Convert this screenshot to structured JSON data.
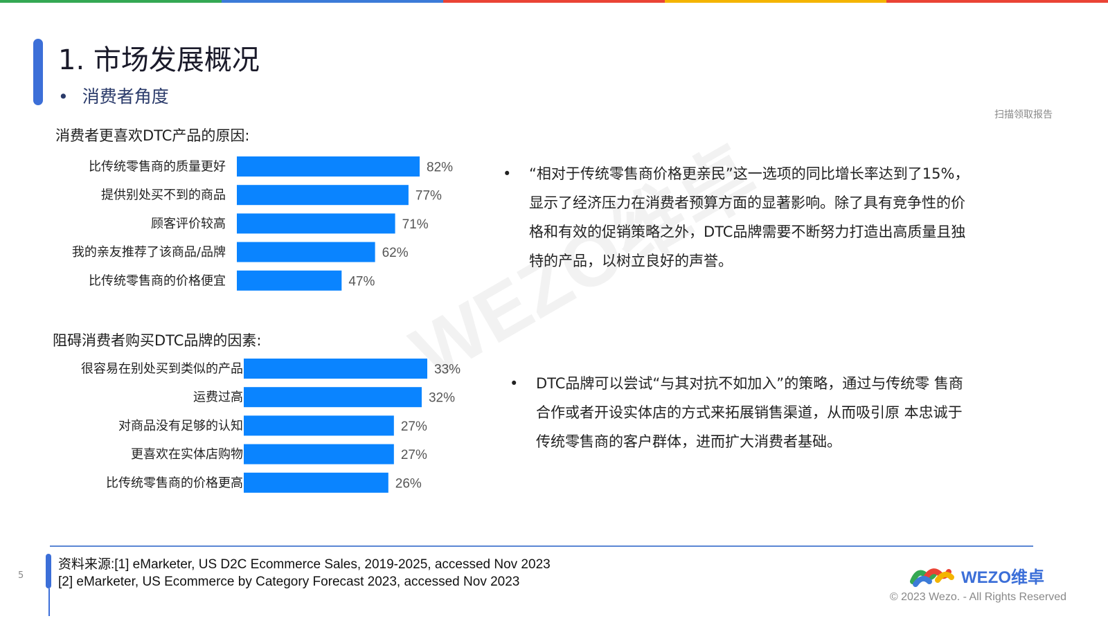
{
  "header": {
    "stripe_colors": [
      "#34a853",
      "#3c7bd8",
      "#ea4335",
      "#f4b400",
      "#ea4335"
    ],
    "title": "1. 市场发展概况",
    "subtitle": "消费者角度",
    "scan_text": "扫描领取报告"
  },
  "chart_data": [
    {
      "type": "bar",
      "orientation": "horizontal",
      "title": "消费者更喜欢DTC产品的原因:",
      "categories": [
        "比传统零售商的质量更好",
        "提供别处买不到的商品",
        "顾客评价较高",
        "我的亲友推荐了该商品/品牌",
        "比传统零售商的价格便宜"
      ],
      "values": [
        82,
        77,
        71,
        62,
        47
      ],
      "value_labels": [
        "82%",
        "77%",
        "71%",
        "62%",
        "47%"
      ],
      "bar_color": "#0a84ff",
      "grid": false
    },
    {
      "type": "bar",
      "orientation": "horizontal",
      "title": "阻碍消费者购买DTC品牌的因素:",
      "categories": [
        "很容易在别处买到类似的产品",
        "运费过高",
        "对商品没有足够的认知",
        "更喜欢在实体店购物",
        "比传统零售商的价格更高"
      ],
      "values": [
        33,
        32,
        27,
        27,
        26
      ],
      "value_labels": [
        "33%",
        "32%",
        "27%",
        "27%",
        "26%"
      ],
      "bar_color": "#0a84ff",
      "grid": false
    }
  ],
  "bullets": [
    "“相对于传统零售商价格更亲民”这一选项的同比增长率达到了15%，显示了经济压力在消费者预算方面的显著影响。除了具有竞争性的价格和有效的促销策略之外，DTC品牌需要不断努力打造出高质量且独特的产品，以树立良好的声誉。",
    "DTC品牌可以尝试“与其对抗不如加入”的策略，通过与传统零 售商合作或者开设实体店的方式来拓展销售渠道，从而吸引原 本忠诚于传统零售商的客户群体，进而扩大消费者基础。"
  ],
  "watermark": "WEZO维卓",
  "footer": {
    "source_line1": "资料来源:[1] eMarketer, US D2C Ecommerce Sales, 2019-2025, accessed Nov 2023",
    "source_line2": "[2] eMarketer, US Ecommerce by Category Forecast 2023, accessed Nov 2023",
    "page_number": "5",
    "logo_text": "WEZO维卓",
    "copyright": "© 2023 Wezo. - All Rights Reserved"
  }
}
